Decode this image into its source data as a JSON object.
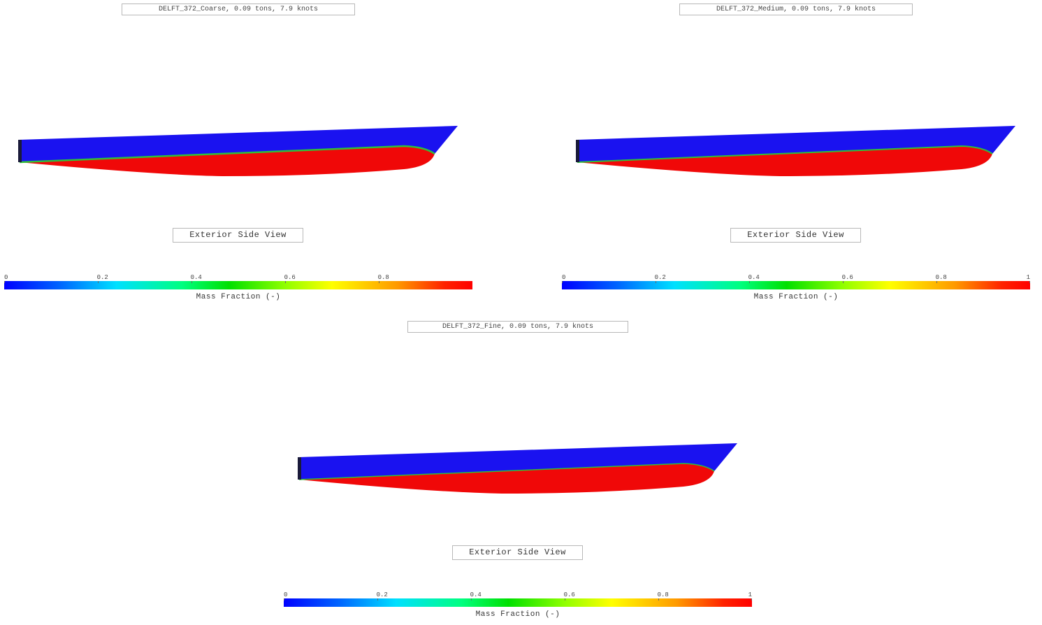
{
  "panels": [
    {
      "title": "DELFT_372_Coarse, 0.09 tons, 7.9 knots",
      "view_label": "Exterior Side View",
      "colorbar": {
        "label": "Mass Fraction (-)",
        "ticks": [
          "0",
          "0.2",
          "0.4",
          "0.6",
          "0.8"
        ]
      }
    },
    {
      "title": "DELFT_372_Medium, 0.09 tons, 7.9 knots",
      "view_label": "Exterior Side View",
      "colorbar": {
        "label": "Mass Fraction (-)",
        "ticks": [
          "0",
          "0.2",
          "0.4",
          "0.6",
          "0.8",
          "1"
        ]
      }
    },
    {
      "title": "DELFT_372_Fine, 0.09 tons, 7.9 knots",
      "view_label": "Exterior Side View",
      "colorbar": {
        "label": "Mass Fraction (-)",
        "ticks": [
          "0",
          "0.2",
          "0.4",
          "0.6",
          "0.8",
          "1"
        ]
      }
    }
  ],
  "colors": {
    "air": "#1a12f0",
    "water": "#f00808",
    "interface": "#2fbf3a"
  }
}
